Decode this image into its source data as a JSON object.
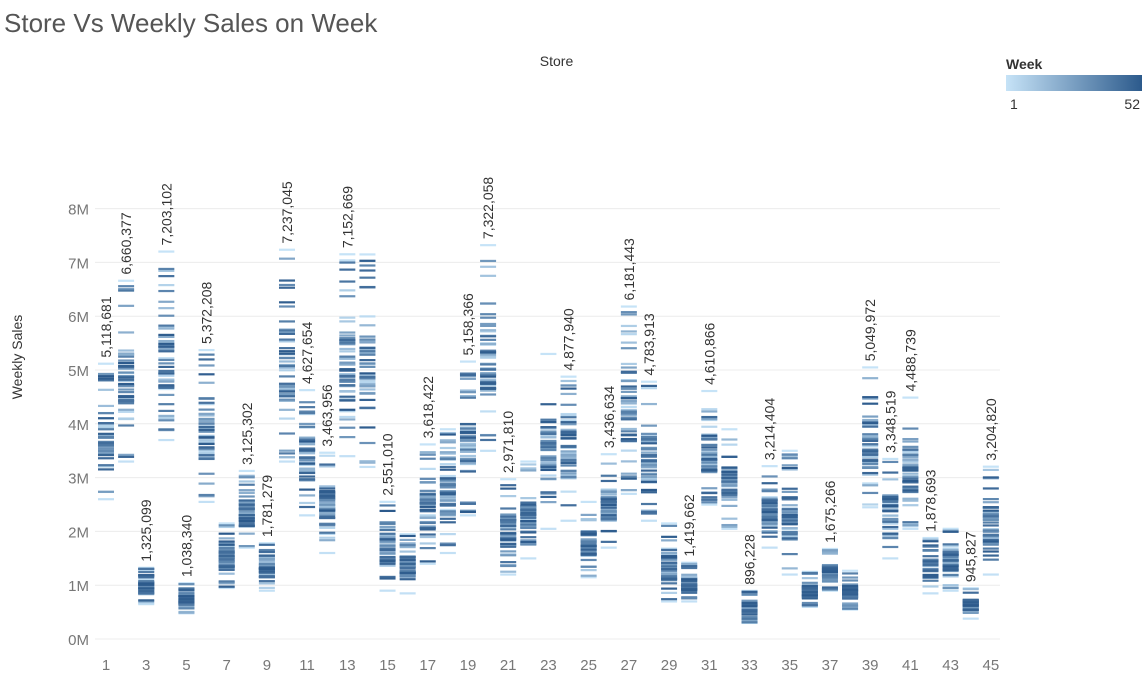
{
  "title": "Store Vs Weekly Sales on Week",
  "legend": {
    "title": "Week",
    "min_label": "1",
    "max_label": "52"
  },
  "colors": {
    "week_min": "#c6e3f7",
    "week_max": "#2c5a8c",
    "grid": "#ececec",
    "axis_text": "#777777",
    "label_text": "#333333",
    "title_text": "#555555"
  },
  "chart_data": {
    "type": "strip",
    "title": "Store Vs Weekly Sales on Week",
    "column_header": "Store",
    "xlabel": "",
    "ylabel": "Weekly Sales",
    "ylim": [
      0,
      8900000
    ],
    "y_ticks": [
      0,
      1000000,
      2000000,
      3000000,
      4000000,
      5000000,
      6000000,
      7000000,
      8000000
    ],
    "y_tick_labels": [
      "0M",
      "1M",
      "2M",
      "3M",
      "4M",
      "5M",
      "6M",
      "7M",
      "8M"
    ],
    "x_tick_labels": [
      "1",
      "3",
      "5",
      "7",
      "9",
      "11",
      "13",
      "15",
      "17",
      "19",
      "21",
      "23",
      "25",
      "27",
      "29",
      "31",
      "33",
      "35",
      "37",
      "39",
      "41",
      "43",
      "45"
    ],
    "color_encoding": "Week (1 to 52)",
    "grid": true,
    "legend_position": "top-right",
    "stores": [
      {
        "store": 1,
        "min": 2600000,
        "max": 5118681,
        "label": "5,118,681"
      },
      {
        "store": 2,
        "min": 3300000,
        "max": 6660377,
        "label": "6,660,377"
      },
      {
        "store": 3,
        "min": 650000,
        "max": 1325099,
        "label": "1,325,099"
      },
      {
        "store": 4,
        "min": 3700000,
        "max": 7203102,
        "label": "7,203,102"
      },
      {
        "store": 5,
        "min": 480000,
        "max": 1038340,
        "label": "1,038,340"
      },
      {
        "store": 6,
        "min": 2550000,
        "max": 5372208,
        "label": "5,372,208"
      },
      {
        "store": 7,
        "min": 950000,
        "max": 2150000,
        "label": ""
      },
      {
        "store": 8,
        "min": 1700000,
        "max": 3125302,
        "label": "3,125,302"
      },
      {
        "store": 9,
        "min": 900000,
        "max": 1781279,
        "label": "1,781,279"
      },
      {
        "store": 10,
        "min": 3300000,
        "max": 7237045,
        "label": "7,237,045"
      },
      {
        "store": 11,
        "min": 2300000,
        "max": 4627654,
        "label": "4,627,654"
      },
      {
        "store": 12,
        "min": 1600000,
        "max": 3463956,
        "label": "3,463,956"
      },
      {
        "store": 13,
        "min": 3400000,
        "max": 7152669,
        "label": "7,152,669"
      },
      {
        "store": 14,
        "min": 3200000,
        "max": 7150000,
        "label": ""
      },
      {
        "store": 15,
        "min": 900000,
        "max": 2551010,
        "label": "2,551,010"
      },
      {
        "store": 16,
        "min": 850000,
        "max": 1950000,
        "label": ""
      },
      {
        "store": 17,
        "min": 1400000,
        "max": 3618422,
        "label": "3,618,422"
      },
      {
        "store": 18,
        "min": 1600000,
        "max": 3900000,
        "label": ""
      },
      {
        "store": 19,
        "min": 2300000,
        "max": 5158366,
        "label": "5,158,366"
      },
      {
        "store": 20,
        "min": 3500000,
        "max": 7322058,
        "label": "7,322,058"
      },
      {
        "store": 21,
        "min": 1200000,
        "max": 2971810,
        "label": "2,971,810"
      },
      {
        "store": 22,
        "min": 1500000,
        "max": 3300000,
        "label": ""
      },
      {
        "store": 23,
        "min": 2050000,
        "max": 5300000,
        "label": ""
      },
      {
        "store": 24,
        "min": 2200000,
        "max": 4877940,
        "label": "4,877,940"
      },
      {
        "store": 25,
        "min": 1150000,
        "max": 2550000,
        "label": ""
      },
      {
        "store": 26,
        "min": 1700000,
        "max": 3436634,
        "label": "3,436,634"
      },
      {
        "store": 27,
        "min": 2700000,
        "max": 6181443,
        "label": "6,181,443"
      },
      {
        "store": 28,
        "min": 2200000,
        "max": 4783913,
        "label": "4,783,913"
      },
      {
        "store": 29,
        "min": 700000,
        "max": 2150000,
        "label": ""
      },
      {
        "store": 30,
        "min": 700000,
        "max": 1419662,
        "label": "1,419,662"
      },
      {
        "store": 31,
        "min": 2500000,
        "max": 4610866,
        "label": "4,610,866"
      },
      {
        "store": 32,
        "min": 2050000,
        "max": 3900000,
        "label": ""
      },
      {
        "store": 33,
        "min": 300000,
        "max": 896228,
        "label": "896,228"
      },
      {
        "store": 34,
        "min": 1700000,
        "max": 3214404,
        "label": "3,214,404"
      },
      {
        "store": 35,
        "min": 1200000,
        "max": 3500000,
        "label": ""
      },
      {
        "store": 36,
        "min": 600000,
        "max": 1250000,
        "label": ""
      },
      {
        "store": 37,
        "min": 900000,
        "max": 1675266,
        "label": "1,675,266"
      },
      {
        "store": 38,
        "min": 550000,
        "max": 1270000,
        "label": ""
      },
      {
        "store": 39,
        "min": 2450000,
        "max": 5049972,
        "label": "5,049,972"
      },
      {
        "store": 40,
        "min": 1500000,
        "max": 3348519,
        "label": "3,348,519"
      },
      {
        "store": 41,
        "min": 2050000,
        "max": 4488739,
        "label": "4,488,739"
      },
      {
        "store": 42,
        "min": 850000,
        "max": 1878693,
        "label": "1,878,693"
      },
      {
        "store": 43,
        "min": 900000,
        "max": 2050000,
        "label": ""
      },
      {
        "store": 44,
        "min": 380000,
        "max": 945827,
        "label": "945,827"
      },
      {
        "store": 45,
        "min": 1200000,
        "max": 3204820,
        "label": "3,204,820"
      }
    ]
  }
}
